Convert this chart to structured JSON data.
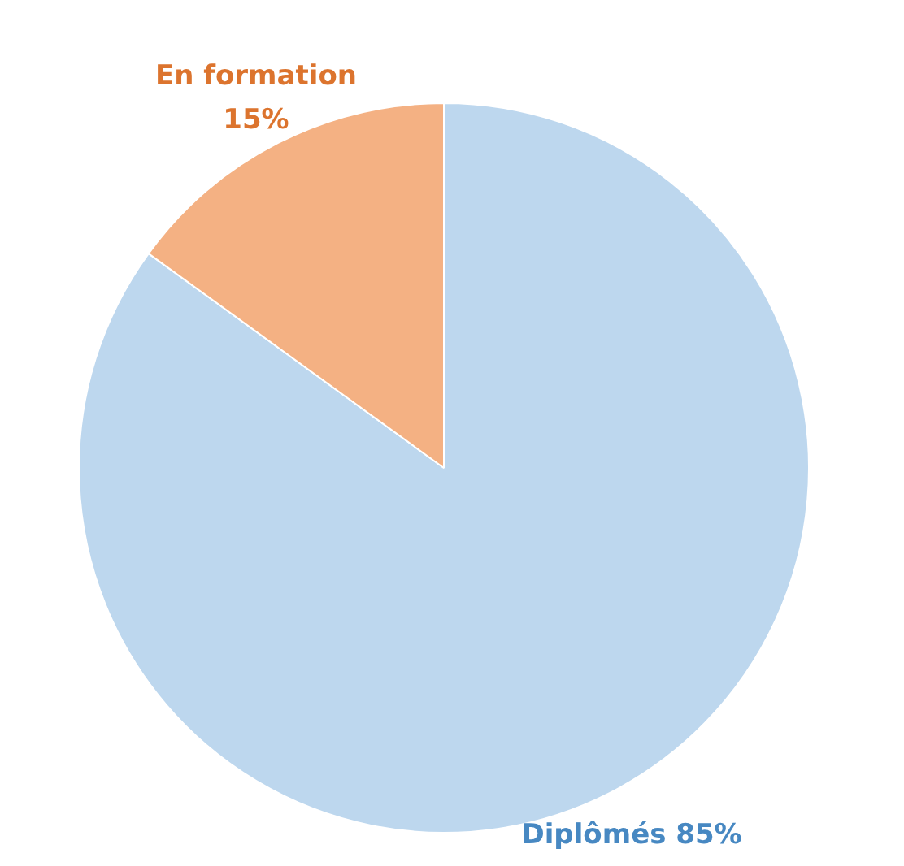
{
  "chart_data": {
    "type": "pie",
    "categories": [
      "Diplômés",
      "En formation"
    ],
    "values": [
      85,
      15
    ],
    "colors": [
      "#bdd7ee",
      "#f4b183"
    ],
    "value_labels": [
      "85%",
      "15%"
    ],
    "legend": false
  }
}
